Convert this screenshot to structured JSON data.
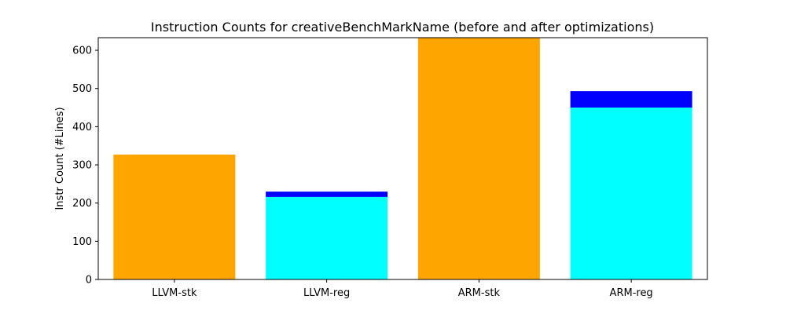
{
  "chart_data": {
    "type": "bar",
    "title": "Instruction Counts for creativeBenchMarkName (before and after optimizations)",
    "xlabel": "",
    "ylabel": "Instr Count (#Lines)",
    "categories": [
      "LLVM-stk",
      "LLVM-reg",
      "ARM-stk",
      "ARM-reg"
    ],
    "stack": [
      {
        "values": [
          327,
          216,
          633,
          450
        ],
        "colors": [
          "#FFA500",
          "#00FFFF",
          "#FFA500",
          "#00FFFF"
        ]
      },
      {
        "values": [
          0,
          14,
          0,
          43
        ],
        "colors": [
          "#0000FF",
          "#0000FF",
          "#0000FF",
          "#0000FF"
        ]
      }
    ],
    "ylim": [
      0,
      633
    ],
    "yticks": [
      0,
      100,
      200,
      300,
      400,
      500,
      600
    ],
    "grid": false,
    "legend": "none"
  }
}
